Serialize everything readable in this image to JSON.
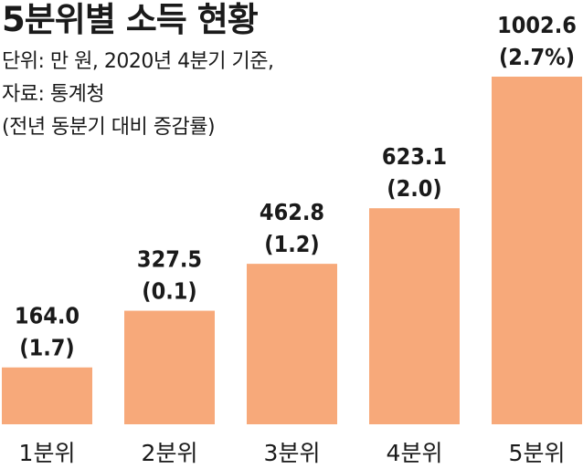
{
  "title": "5분위별 소득 현황",
  "notes": [
    "단위: 만 원, 2020년 4분기 기준,",
    "자료: 통계청",
    "(전년 동분기 대비 증감률)"
  ],
  "colors": {
    "bar": "#F7A97A",
    "text": "#1a1a1a"
  },
  "chart_data": {
    "type": "bar",
    "title": "5분위별 소득 현황",
    "categories": [
      "1분위",
      "2분위",
      "3분위",
      "4분위",
      "5분위"
    ],
    "values": [
      164.0,
      327.5,
      462.8,
      623.1,
      1002.6
    ],
    "value_labels": [
      "164.0",
      "327.5",
      "462.8",
      "623.1",
      "1002.6"
    ],
    "change_labels": [
      "(1.7)",
      "(0.1)",
      "(1.2)",
      "(2.0)",
      "(2.7%)"
    ],
    "xlabel": "",
    "ylabel": "",
    "ylim": [
      0,
      1002.6
    ],
    "grid": false,
    "legend": "none"
  }
}
